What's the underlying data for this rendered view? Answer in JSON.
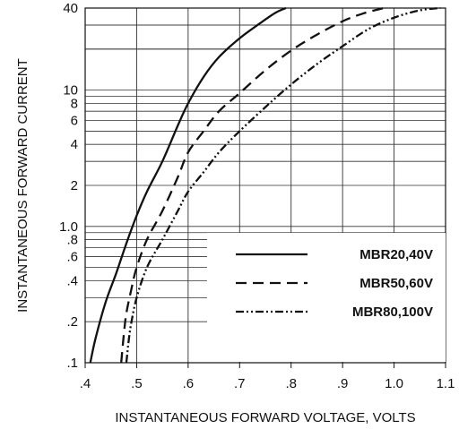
{
  "chart_data": {
    "type": "line",
    "xlabel": "INSTANTANEOUS FORWARD VOLTAGE, VOLTS",
    "ylabel": "INSTANTANEOUS FORWARD CURRENT",
    "xlim": [
      0.4,
      1.1
    ],
    "ylim": [
      0.1,
      40
    ],
    "yscale": "log",
    "xticks": [
      0.4,
      0.5,
      0.6,
      0.7,
      0.8,
      0.9,
      1.0,
      1.1
    ],
    "xtick_labels": [
      ".4",
      ".5",
      ".6",
      ".7",
      ".8",
      ".9",
      "1.0",
      "1.1"
    ],
    "yticks": [
      0.1,
      0.2,
      0.4,
      0.6,
      0.8,
      1.0,
      2,
      4,
      6,
      8,
      10,
      40
    ],
    "ytick_labels": [
      ".1",
      ".2",
      ".4",
      ".6",
      ".8",
      "1.0",
      "2",
      "4",
      "6",
      "8",
      "10",
      "40"
    ],
    "grid": true,
    "legend_position": "bottom-right",
    "series": [
      {
        "name": "MBR20,40V",
        "dash": "solid",
        "x": [
          0.41,
          0.42,
          0.44,
          0.46,
          0.48,
          0.5,
          0.52,
          0.55,
          0.58,
          0.6,
          0.63,
          0.66,
          0.7,
          0.74,
          0.77,
          0.79
        ],
        "y": [
          0.1,
          0.15,
          0.28,
          0.45,
          0.75,
          1.2,
          1.8,
          3.0,
          5.5,
          8.0,
          12.5,
          17.5,
          24,
          31,
          37,
          40
        ]
      },
      {
        "name": "MBR50,60V",
        "dash": "dashed",
        "x": [
          0.47,
          0.475,
          0.48,
          0.49,
          0.5,
          0.52,
          0.55,
          0.58,
          0.6,
          0.63,
          0.66,
          0.7,
          0.75,
          0.8,
          0.85,
          0.9,
          0.94,
          0.98
        ],
        "y": [
          0.1,
          0.16,
          0.23,
          0.35,
          0.5,
          0.8,
          1.3,
          2.3,
          3.5,
          5.0,
          7.0,
          9.5,
          14,
          19.5,
          25.5,
          32,
          36.5,
          40
        ]
      },
      {
        "name": "MBR80,100V",
        "dash": "dash-dot-dot",
        "x": [
          0.48,
          0.485,
          0.49,
          0.5,
          0.52,
          0.55,
          0.58,
          0.6,
          0.63,
          0.66,
          0.7,
          0.75,
          0.8,
          0.85,
          0.9,
          0.95,
          1.0,
          1.05,
          1.09
        ],
        "y": [
          0.1,
          0.15,
          0.2,
          0.3,
          0.5,
          0.8,
          1.3,
          1.8,
          2.5,
          3.5,
          5.0,
          7.5,
          11,
          15.5,
          21,
          28,
          34,
          38.5,
          40
        ]
      }
    ]
  }
}
